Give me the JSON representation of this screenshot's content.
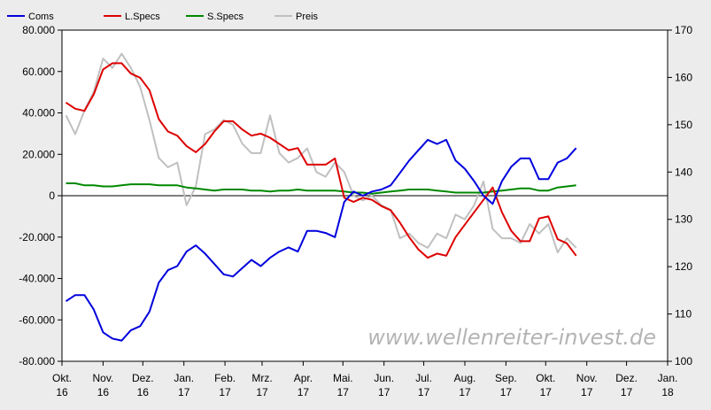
{
  "chart_data": {
    "type": "line",
    "watermark": "www.wellenreiter-invest.de",
    "y_left": {
      "min": -80000,
      "max": 80000,
      "ticks": [
        80000,
        60000,
        40000,
        20000,
        0,
        -20000,
        -40000,
        -60000,
        -80000
      ],
      "tick_labels": [
        "80.000",
        "60.000",
        "40.000",
        "20.000",
        "0",
        "-20.000",
        "-40.000",
        "-60.000",
        "-80.000"
      ]
    },
    "y_right": {
      "min": 100,
      "max": 170,
      "ticks": [
        170,
        160,
        150,
        140,
        130,
        120,
        110,
        100
      ],
      "tick_labels": [
        "170",
        "160",
        "150",
        "140",
        "130",
        "120",
        "110",
        "100"
      ]
    },
    "x_axis": {
      "start": "2016-10-01",
      "end": "2018-01-01",
      "ticks": [
        {
          "date": "2016-10-01",
          "label": [
            "Okt.",
            "16"
          ]
        },
        {
          "date": "2016-11-01",
          "label": [
            "Nov.",
            "16"
          ]
        },
        {
          "date": "2016-12-01",
          "label": [
            "Dez.",
            "16"
          ]
        },
        {
          "date": "2017-01-01",
          "label": [
            "Jan.",
            "17"
          ]
        },
        {
          "date": "2017-02-01",
          "label": [
            "Feb.",
            "17"
          ]
        },
        {
          "date": "2017-03-01",
          "label": [
            "Mrz.",
            "17"
          ]
        },
        {
          "date": "2017-04-01",
          "label": [
            "Apr.",
            "17"
          ]
        },
        {
          "date": "2017-05-01",
          "label": [
            "Mai.",
            "17"
          ]
        },
        {
          "date": "2017-06-01",
          "label": [
            "Jun.",
            "17"
          ]
        },
        {
          "date": "2017-07-01",
          "label": [
            "Jul.",
            "17"
          ]
        },
        {
          "date": "2017-08-01",
          "label": [
            "Aug.",
            "17"
          ]
        },
        {
          "date": "2017-09-01",
          "label": [
            "Sep.",
            "17"
          ]
        },
        {
          "date": "2017-10-01",
          "label": [
            "Okt.",
            "17"
          ]
        },
        {
          "date": "2017-11-01",
          "label": [
            "Nov.",
            "17"
          ]
        },
        {
          "date": "2017-12-01",
          "label": [
            "Dez.",
            "17"
          ]
        },
        {
          "date": "2018-01-01",
          "label": [
            "Jan.",
            "18"
          ]
        }
      ]
    },
    "x": [
      "2016-10-04",
      "2016-10-11",
      "2016-10-18",
      "2016-10-25",
      "2016-11-01",
      "2016-11-08",
      "2016-11-15",
      "2016-11-22",
      "2016-11-29",
      "2016-12-06",
      "2016-12-13",
      "2016-12-20",
      "2016-12-27",
      "2017-01-03",
      "2017-01-10",
      "2017-01-17",
      "2017-01-24",
      "2017-01-31",
      "2017-02-07",
      "2017-02-14",
      "2017-02-21",
      "2017-02-28",
      "2017-03-07",
      "2017-03-14",
      "2017-03-21",
      "2017-03-28",
      "2017-04-04",
      "2017-04-11",
      "2017-04-18",
      "2017-04-25",
      "2017-05-02",
      "2017-05-09",
      "2017-05-16",
      "2017-05-23",
      "2017-05-30",
      "2017-06-06",
      "2017-06-13",
      "2017-06-20",
      "2017-06-27",
      "2017-07-04",
      "2017-07-11",
      "2017-07-18",
      "2017-07-25",
      "2017-08-01",
      "2017-08-08",
      "2017-08-15",
      "2017-08-22",
      "2017-08-29",
      "2017-09-05",
      "2017-09-12",
      "2017-09-19",
      "2017-09-26",
      "2017-10-03",
      "2017-10-10",
      "2017-10-17",
      "2017-10-24"
    ],
    "series": [
      {
        "name": "Coms",
        "axis": "left",
        "color": "#0000dd",
        "values": [
          -51000,
          -48000,
          -48000,
          -55000,
          -66000,
          -69000,
          -70000,
          -65000,
          -63000,
          -56000,
          -42000,
          -36000,
          -34000,
          -27000,
          -24000,
          -28000,
          -33000,
          -38000,
          -39000,
          -35000,
          -31000,
          -34000,
          -30000,
          -27000,
          -25000,
          -27000,
          -17000,
          -17000,
          -18000,
          -20000,
          -3000,
          2000,
          0,
          2000,
          3000,
          5000,
          11000,
          17000,
          22000,
          27000,
          25000,
          27000,
          17000,
          13000,
          7000,
          0,
          -4000,
          7000,
          14000,
          18000,
          18000,
          8000,
          8000,
          16000,
          18000,
          23000
        ]
      },
      {
        "name": "L.Specs",
        "axis": "left",
        "color": "#dd0000",
        "values": [
          45000,
          42000,
          41000,
          49000,
          61000,
          64000,
          64000,
          59000,
          57000,
          51000,
          37000,
          31000,
          29000,
          24000,
          21000,
          25000,
          31000,
          36000,
          36000,
          32000,
          29000,
          30000,
          28000,
          25000,
          22000,
          23000,
          15000,
          15000,
          15000,
          18000,
          -1000,
          -3000,
          -1000,
          -2000,
          -5000,
          -7000,
          -13000,
          -20000,
          -26000,
          -30000,
          -28000,
          -29000,
          -20000,
          -14000,
          -8000,
          -2000,
          4000,
          -8000,
          -17000,
          -22000,
          -22000,
          -11000,
          -10000,
          -21000,
          -23000,
          -29000
        ]
      },
      {
        "name": "S.Specs",
        "axis": "left",
        "color": "#008800",
        "values": [
          6000,
          6000,
          5000,
          5000,
          4500,
          4500,
          5000,
          5500,
          5500,
          5500,
          5000,
          5000,
          5000,
          4000,
          3500,
          3000,
          2500,
          3000,
          3000,
          3000,
          2500,
          2500,
          2000,
          2500,
          2500,
          3000,
          2500,
          2500,
          2500,
          2500,
          2000,
          1500,
          1500,
          1000,
          1500,
          2000,
          2500,
          3000,
          3000,
          3000,
          2500,
          2000,
          1500,
          1500,
          1500,
          1500,
          2000,
          2500,
          3000,
          3500,
          3500,
          2500,
          2500,
          4000,
          4500,
          5000
        ]
      },
      {
        "name": "Preis",
        "axis": "right",
        "color": "#c0c0c0",
        "values": [
          152,
          148,
          153,
          157,
          164,
          162,
          165,
          162,
          158,
          151,
          143,
          141,
          142,
          133,
          137,
          148,
          149,
          151,
          150,
          146,
          144,
          144,
          152,
          144,
          142,
          143,
          145,
          140,
          139,
          142,
          140,
          135,
          134,
          135,
          133,
          132,
          126,
          127,
          125,
          124,
          127,
          126,
          131,
          130,
          133,
          138,
          128,
          126,
          126,
          125,
          129,
          127,
          129,
          123,
          126,
          124
        ]
      }
    ]
  }
}
